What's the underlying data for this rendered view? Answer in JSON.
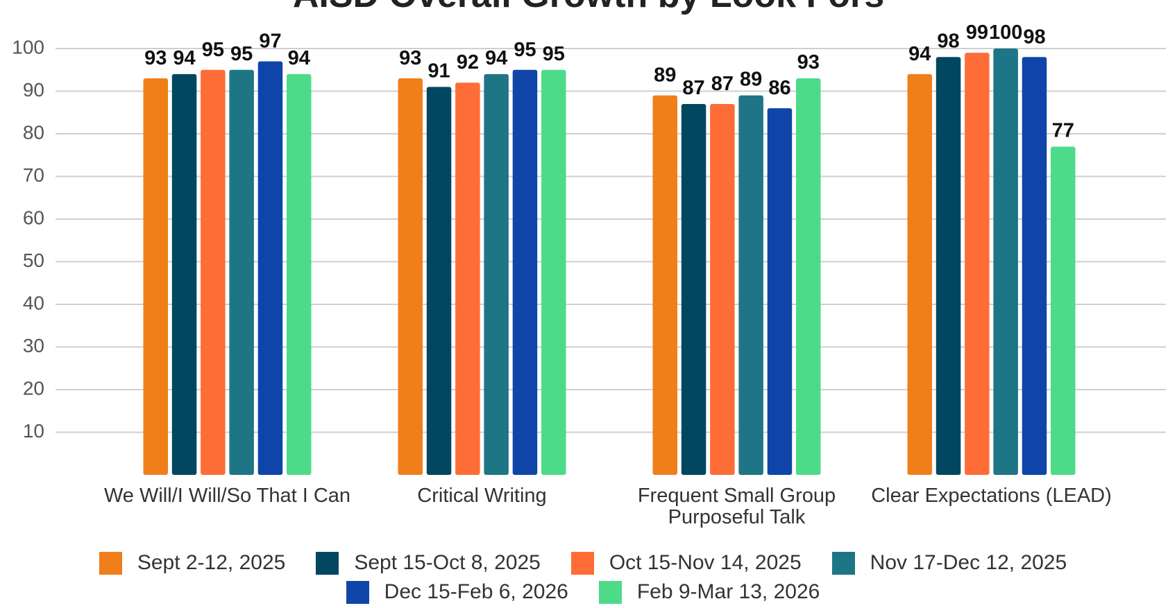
{
  "chart_data": {
    "type": "bar",
    "title": "AISD Overall Growth by Look Fors",
    "categories": [
      "We Will/I Will/So That I Can",
      "Critical Writing",
      "Frequent Small Group Purposeful Talk",
      "Clear Expectations (LEAD)"
    ],
    "series": [
      {
        "name": "Sept 2-12, 2025",
        "color": "#f07f1a",
        "values": [
          93,
          93,
          89,
          94
        ]
      },
      {
        "name": "Sept 15-Oct 8, 2025",
        "color": "#00475f",
        "values": [
          94,
          91,
          87,
          98
        ]
      },
      {
        "name": "Oct 15-Nov 14, 2025",
        "color": "#ff6d36",
        "values": [
          95,
          92,
          87,
          99
        ]
      },
      {
        "name": "Nov 17-Dec 12, 2025",
        "color": "#1e7585",
        "values": [
          95,
          94,
          89,
          100
        ]
      },
      {
        "name": "Dec 15-Feb 6, 2026",
        "color": "#0f45a8",
        "values": [
          97,
          95,
          86,
          98
        ]
      },
      {
        "name": "Feb 9-Mar 13, 2026",
        "color": "#4ddb8a",
        "values": [
          94,
          95,
          93,
          77
        ]
      }
    ],
    "ylim": [
      0,
      100
    ],
    "yticks": [
      10,
      20,
      30,
      40,
      50,
      60,
      70,
      80,
      90,
      100
    ],
    "grid": true
  }
}
